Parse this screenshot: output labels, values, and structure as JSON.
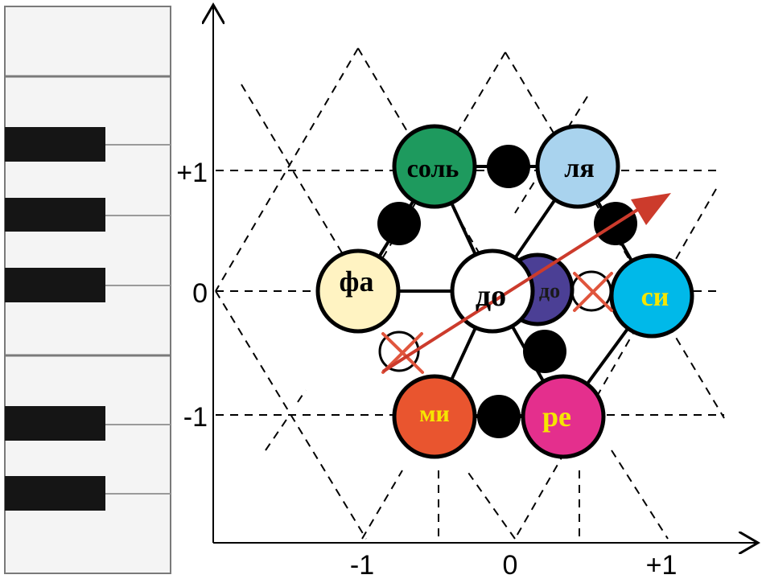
{
  "colors": {
    "key_white": "#f4f4f4",
    "key_black": "#151515",
    "key_border": "#7a7a7a",
    "line": "#000000",
    "arrow": "#cc3b2c",
    "cross": "#e0553d"
  },
  "axes": {
    "x_ticks": [
      {
        "value": -1,
        "label": "-1"
      },
      {
        "value": 0,
        "label": "0"
      },
      {
        "value": 1,
        "label": "+1"
      }
    ],
    "y_ticks": [
      {
        "value": 1,
        "label": "+1"
      },
      {
        "value": 0,
        "label": "0"
      },
      {
        "value": -1,
        "label": "-1"
      }
    ]
  },
  "notes": [
    {
      "id": "sol",
      "label": "соль",
      "fill": "#1e9a5e",
      "text_color": "#000000"
    },
    {
      "id": "la",
      "label": "ля",
      "fill": "#a9d3ee",
      "text_color": "#000000"
    },
    {
      "id": "fa",
      "label": "фа",
      "fill": "#fff3c2",
      "text_color": "#000000"
    },
    {
      "id": "do",
      "label": "до",
      "fill": "#ffffff",
      "text_color": "#000000"
    },
    {
      "id": "do2",
      "label": "до",
      "fill": "#4b3f95",
      "text_color": "#1a1a1a"
    },
    {
      "id": "si",
      "label": "си",
      "fill": "#00b9e9",
      "text_color": "#f6e600"
    },
    {
      "id": "mi",
      "label": "ми",
      "fill": "#e9552f",
      "text_color": "#f6e600"
    },
    {
      "id": "re",
      "label": "ре",
      "fill": "#e42f8d",
      "text_color": "#f6e600"
    }
  ]
}
